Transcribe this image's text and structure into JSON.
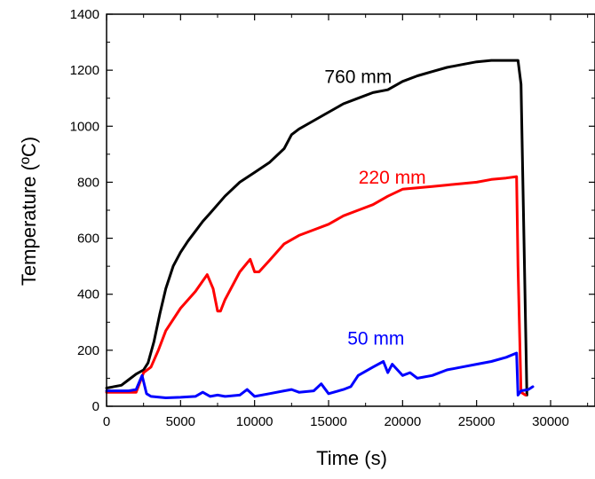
{
  "chart_data": {
    "type": "line",
    "title": "",
    "xlabel": "Time (s)",
    "ylabel": "Temperature (ºC)",
    "xlim": [
      0,
      33000
    ],
    "ylim": [
      0,
      1400
    ],
    "xticks": [
      0,
      5000,
      10000,
      15000,
      20000,
      25000,
      30000
    ],
    "yticks": [
      0,
      200,
      400,
      600,
      800,
      1000,
      1200,
      1400
    ],
    "grid": false,
    "legend": "none (series labeled inline)",
    "series": [
      {
        "name": "760 mm",
        "color": "#000000",
        "x": [
          0,
          1000,
          1500,
          2000,
          2500,
          2800,
          3200,
          3600,
          4000,
          4500,
          5000,
          5500,
          6000,
          6500,
          7000,
          8000,
          9000,
          10000,
          11000,
          12000,
          12500,
          13000,
          14000,
          15000,
          16000,
          17000,
          18000,
          19000,
          20000,
          21000,
          22000,
          23000,
          24000,
          25000,
          26000,
          27000,
          27800,
          28000,
          28200,
          28400
        ],
        "y": [
          65,
          75,
          95,
          115,
          130,
          155,
          230,
          330,
          420,
          500,
          550,
          590,
          625,
          660,
          690,
          750,
          800,
          835,
          870,
          920,
          970,
          990,
          1020,
          1050,
          1080,
          1100,
          1120,
          1130,
          1160,
          1180,
          1195,
          1210,
          1220,
          1230,
          1235,
          1235,
          1235,
          1150,
          600,
          40
        ]
      },
      {
        "name": "220 mm",
        "color": "#ff0000",
        "x": [
          0,
          2000,
          2500,
          3000,
          3500,
          4000,
          5000,
          6000,
          6800,
          7200,
          7500,
          7700,
          8000,
          9000,
          9700,
          10000,
          10300,
          11000,
          12000,
          13000,
          14000,
          15000,
          16000,
          17000,
          18000,
          19000,
          20000,
          21000,
          22000,
          23000,
          24000,
          25000,
          26000,
          27000,
          27700,
          27800,
          28000,
          28300
        ],
        "y": [
          50,
          50,
          120,
          140,
          200,
          270,
          350,
          410,
          470,
          420,
          340,
          340,
          380,
          480,
          525,
          480,
          480,
          520,
          580,
          610,
          630,
          650,
          680,
          700,
          720,
          750,
          775,
          780,
          785,
          790,
          795,
          800,
          810,
          815,
          820,
          500,
          50,
          40
        ]
      },
      {
        "name": "50 mm",
        "color": "#0000ff",
        "x": [
          0,
          1500,
          2000,
          2400,
          2700,
          3000,
          4000,
          5000,
          6000,
          6500,
          7000,
          7500,
          8000,
          9000,
          9500,
          10000,
          11000,
          12000,
          12500,
          13000,
          14000,
          14500,
          15000,
          16000,
          16500,
          17000,
          18000,
          18700,
          19000,
          19300,
          20000,
          20500,
          21000,
          22000,
          23000,
          24000,
          25000,
          26000,
          27000,
          27700,
          27800,
          28000,
          28500,
          28800
        ],
        "y": [
          55,
          55,
          60,
          110,
          45,
          35,
          30,
          32,
          35,
          50,
          35,
          40,
          35,
          40,
          60,
          35,
          45,
          55,
          60,
          50,
          55,
          80,
          45,
          60,
          70,
          110,
          140,
          160,
          120,
          150,
          110,
          120,
          100,
          110,
          130,
          140,
          150,
          160,
          175,
          190,
          40,
          55,
          60,
          70
        ]
      }
    ],
    "annotations": [
      {
        "text": "760 mm",
        "x": 17000,
        "y": 1155
      },
      {
        "text": "220 mm",
        "x": 19300,
        "y": 795
      },
      {
        "text": "50 mm",
        "x": 18200,
        "y": 220
      }
    ]
  }
}
